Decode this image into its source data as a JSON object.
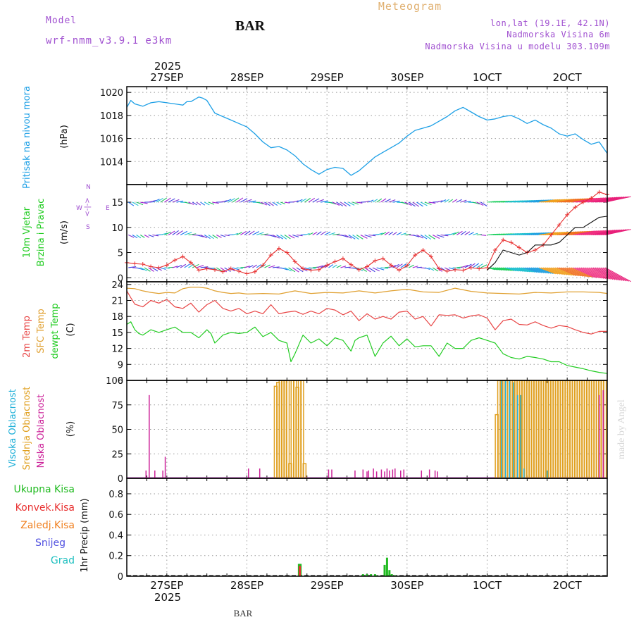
{
  "header": {
    "model_label": "Model",
    "model_name": "wrf-nmm_v3.9.1 e3km",
    "station": "BAR",
    "title": "Meteogram",
    "lonlat": "lon,lat (19.1E, 42.1N)",
    "elevation": "Nadmorska Visina 6m",
    "model_elevation": "Nadmorska Visina u modelu 303.109m",
    "footer_station": "BAR",
    "watermark": "made by Angel"
  },
  "time_axis": {
    "year": "2025",
    "ticks": [
      "27SEP",
      "28SEP",
      "29SEP",
      "30SEP",
      "1OCT",
      "2OCT"
    ],
    "x_start": -0.5,
    "x_end": 5.5
  },
  "panel_labels": {
    "pressure": {
      "name": "Pritisak na nivou mora",
      "unit": "(hPa)"
    },
    "wind": {
      "name1": "10m Vjetar",
      "name2": "Brzina i Pravac",
      "unit": "(m/s)",
      "legend_n": "N",
      "legend_s": "S",
      "legend_w": "W",
      "legend_e": "E",
      "legend_arrow": "<-|->"
    },
    "temp": {
      "t2m": "2m Temp",
      "sfc": "SFC Temp",
      "dewpt": "dewpt Temp",
      "unit": "(C)"
    },
    "cloud": {
      "high": "Visoka Oblacnost",
      "mid": "Srednja Oblacnost",
      "low": "Niska Oblacnost",
      "unit": "(%)"
    },
    "precip": {
      "total": "Ukupna Kisa",
      "conv": "Konvek.Kisa",
      "frozen": "Zaledj.Kisa",
      "snow": "Snijeg",
      "hail": "Grad",
      "unit": "1hr Precip (mm)"
    }
  },
  "colors": {
    "pressure": "#1ea0e6",
    "wind_speed": "#e83030",
    "wind_gust": "#111111",
    "t2m": "#e84545",
    "sfc": "#e0a030",
    "dewpt": "#22cc22",
    "cloud_high": "#20b0d8",
    "cloud_mid": "#e0a020",
    "cloud_low": "#cc2299",
    "precip_total": "#22bb22",
    "precip_conv": "#e83030",
    "precip_frozen": "#f08020",
    "precip_snow": "#5050e0",
    "precip_hail": "#20c0c0",
    "model_label": "#a050d0",
    "title": "#e0b070",
    "site_info": "#a050d0"
  },
  "chart_data": [
    {
      "type": "line",
      "id": "pressure",
      "ylim": [
        1012,
        1020.5
      ],
      "yticks": [
        1014,
        1016,
        1018,
        1020
      ],
      "x": [
        -0.5,
        -0.45,
        -0.4,
        -0.3,
        -0.2,
        -0.1,
        0,
        0.1,
        0.2,
        0.25,
        0.3,
        0.4,
        0.45,
        0.5,
        0.6,
        0.7,
        0.8,
        0.9,
        1.0,
        1.1,
        1.2,
        1.3,
        1.4,
        1.5,
        1.6,
        1.7,
        1.8,
        1.9,
        2.0,
        2.1,
        2.2,
        2.3,
        2.4,
        2.5,
        2.6,
        2.7,
        2.8,
        2.9,
        3.0,
        3.1,
        3.2,
        3.3,
        3.4,
        3.5,
        3.6,
        3.7,
        3.8,
        3.9,
        4.0,
        4.1,
        4.2,
        4.3,
        4.4,
        4.5,
        4.6,
        4.7,
        4.8,
        4.9,
        5.0,
        5.1,
        5.2,
        5.3,
        5.4,
        5.5
      ],
      "values": [
        1018.7,
        1019.3,
        1019.0,
        1018.8,
        1019.1,
        1019.2,
        1019.1,
        1019.0,
        1018.9,
        1019.2,
        1019.2,
        1019.6,
        1019.5,
        1019.3,
        1018.2,
        1017.9,
        1017.6,
        1017.3,
        1017.0,
        1016.4,
        1015.7,
        1015.2,
        1015.3,
        1015.0,
        1014.5,
        1013.8,
        1013.3,
        1012.9,
        1013.3,
        1013.5,
        1013.4,
        1012.8,
        1013.2,
        1013.8,
        1014.4,
        1014.8,
        1015.2,
        1015.6,
        1016.2,
        1016.7,
        1016.9,
        1017.1,
        1017.5,
        1017.9,
        1018.4,
        1018.7,
        1018.3,
        1017.9,
        1017.6,
        1017.7,
        1017.9,
        1018.0,
        1017.7,
        1017.3,
        1017.6,
        1017.2,
        1016.9,
        1016.4,
        1016.2,
        1016.4,
        1015.9,
        1015.5,
        1015.7,
        1014.7
      ]
    },
    {
      "type": "line",
      "id": "wind",
      "ylim": [
        -0.8,
        18.5
      ],
      "yticks": [
        0,
        5,
        10,
        15
      ],
      "series": [
        {
          "name": "speed",
          "x": [
            -0.5,
            -0.4,
            -0.3,
            -0.2,
            -0.1,
            0,
            0.1,
            0.2,
            0.3,
            0.4,
            0.5,
            0.6,
            0.7,
            0.8,
            0.9,
            1.0,
            1.1,
            1.2,
            1.3,
            1.4,
            1.5,
            1.6,
            1.7,
            1.8,
            1.9,
            2.0,
            2.1,
            2.2,
            2.3,
            2.4,
            2.5,
            2.6,
            2.7,
            2.8,
            2.9,
            3.0,
            3.1,
            3.2,
            3.3,
            3.4,
            3.5,
            3.6,
            3.7,
            3.8,
            3.9,
            4.0,
            4.1,
            4.2,
            4.3,
            4.4,
            4.5,
            4.6,
            4.7,
            4.8,
            4.9,
            5.0,
            5.1,
            5.2,
            5.3,
            5.4,
            5.5
          ],
          "values": [
            3,
            2.8,
            2.7,
            2.2,
            2,
            2.5,
            3.5,
            4.2,
            3,
            1.5,
            1.8,
            1.6,
            1.2,
            1.8,
            1.3,
            0.8,
            1.2,
            2.5,
            4.5,
            5.8,
            5,
            3.2,
            1.8,
            1.5,
            1.6,
            2.5,
            3.2,
            3.8,
            2.6,
            1.6,
            2.2,
            3.4,
            3.8,
            2.5,
            1.5,
            2.4,
            4.5,
            5.5,
            4.2,
            1.8,
            1.3,
            1.6,
            1.5,
            2,
            1.8,
            2,
            5.5,
            7.5,
            7,
            6,
            5,
            5.5,
            6.5,
            8.5,
            10.5,
            12.5,
            14,
            15,
            15.8,
            17,
            16.5
          ]
        },
        {
          "name": "gust",
          "x": [
            4.0,
            4.1,
            4.2,
            4.3,
            4.4,
            4.5,
            4.6,
            4.7,
            4.8,
            4.9,
            5.0,
            5.1,
            5.2,
            5.3,
            5.4,
            5.5
          ],
          "values": [
            1.5,
            3,
            5.5,
            5,
            4.5,
            5,
            6.5,
            6.5,
            6.5,
            7,
            8.5,
            10,
            10,
            11,
            12,
            12.2
          ]
        }
      ],
      "arrow_rows": [
        2,
        8.5,
        15
      ]
    },
    {
      "type": "line",
      "id": "temperature",
      "ylim": [
        6,
        24.5
      ],
      "yticks": [
        6,
        9,
        12,
        15,
        18,
        21,
        24
      ],
      "series": [
        {
          "name": "t2m",
          "x": [
            -0.5,
            -0.45,
            -0.4,
            -0.3,
            -0.2,
            -0.1,
            0,
            0.1,
            0.2,
            0.3,
            0.4,
            0.5,
            0.6,
            0.7,
            0.8,
            0.9,
            1.0,
            1.1,
            1.2,
            1.3,
            1.4,
            1.5,
            1.6,
            1.7,
            1.8,
            1.9,
            2.0,
            2.1,
            2.2,
            2.3,
            2.4,
            2.5,
            2.6,
            2.7,
            2.8,
            2.9,
            3.0,
            3.1,
            3.2,
            3.3,
            3.4,
            3.5,
            3.6,
            3.7,
            3.8,
            3.9,
            4.0,
            4.1,
            4.2,
            4.3,
            4.4,
            4.5,
            4.6,
            4.7,
            4.8,
            4.9,
            5.0,
            5.1,
            5.2,
            5.3,
            5.4,
            5.5
          ],
          "values": [
            22.8,
            21.5,
            20.3,
            19.8,
            21,
            20.5,
            21.2,
            19.8,
            19.5,
            20.5,
            18.8,
            20.2,
            21,
            19.5,
            19,
            19.5,
            18.5,
            19,
            18.5,
            20.2,
            18.5,
            18.8,
            19,
            18.4,
            19,
            18.5,
            19.5,
            19.2,
            18.3,
            19,
            17.2,
            18.5,
            17.5,
            18,
            17.5,
            18.8,
            19,
            17.5,
            18,
            16.2,
            18.3,
            18.2,
            18.3,
            17.7,
            18.1,
            18.3,
            17.7,
            15.5,
            17.2,
            17.5,
            16.5,
            16.4,
            17,
            16.3,
            15.8,
            16.3,
            16.1,
            15.5,
            15,
            14.7,
            15.2,
            15.2
          ]
        },
        {
          "name": "sfc",
          "x": [
            -0.5,
            -0.4,
            -0.3,
            -0.2,
            -0.1,
            0,
            0.1,
            0.2,
            0.3,
            0.4,
            0.5,
            0.6,
            0.7,
            0.8,
            0.9,
            1.0,
            1.2,
            1.4,
            1.6,
            1.8,
            2.0,
            2.2,
            2.4,
            2.6,
            2.8,
            3.0,
            3.2,
            3.4,
            3.6,
            3.8,
            4.0,
            4.2,
            4.4,
            4.6,
            4.8,
            5.0,
            5.2,
            5.4,
            5.5
          ],
          "values": [
            23.3,
            23.2,
            22.8,
            22.5,
            22.3,
            22.5,
            22.4,
            23.2,
            23.5,
            23.5,
            23.3,
            22.8,
            22.5,
            22.3,
            22.4,
            22.2,
            22.3,
            22.2,
            22.8,
            22.3,
            22.5,
            22.4,
            22.8,
            22.4,
            22.8,
            23.1,
            22.6,
            22.5,
            23.3,
            22.7,
            22.4,
            22.3,
            22.2,
            22.5,
            22.4,
            22.6,
            22.6,
            22.5,
            22.3
          ]
        },
        {
          "name": "dewpt",
          "x": [
            -0.5,
            -0.45,
            -0.4,
            -0.35,
            -0.3,
            -0.2,
            -0.1,
            0,
            0.1,
            0.2,
            0.3,
            0.4,
            0.5,
            0.55,
            0.6,
            0.7,
            0.8,
            0.9,
            1.0,
            1.1,
            1.2,
            1.3,
            1.4,
            1.5,
            1.55,
            1.6,
            1.7,
            1.8,
            1.9,
            2.0,
            2.1,
            2.2,
            2.3,
            2.35,
            2.4,
            2.5,
            2.6,
            2.7,
            2.8,
            2.9,
            3.0,
            3.1,
            3.2,
            3.3,
            3.4,
            3.5,
            3.6,
            3.7,
            3.8,
            3.9,
            4.0,
            4.1,
            4.2,
            4.3,
            4.4,
            4.5,
            4.6,
            4.7,
            4.8,
            4.9,
            5.0,
            5.1,
            5.2,
            5.3,
            5.4,
            5.5
          ],
          "values": [
            16.5,
            17,
            15.5,
            14.8,
            14.5,
            15.5,
            15,
            15.5,
            16,
            15,
            15,
            14,
            15.5,
            14.8,
            13,
            14.5,
            15,
            14.8,
            15,
            16,
            14.2,
            15,
            13.5,
            13,
            9.5,
            11,
            14.5,
            13,
            13.8,
            12.5,
            14,
            13.5,
            11.5,
            13.5,
            14,
            14.5,
            10.5,
            13,
            14.3,
            12.5,
            13.8,
            12.3,
            12.5,
            12.5,
            10.5,
            13,
            12,
            12,
            13.5,
            14,
            13.5,
            13,
            11,
            10.3,
            10,
            10.5,
            10.3,
            10,
            9.5,
            9.5,
            8.8,
            8.5,
            8.2,
            7.8,
            7.5,
            7.3
          ]
        }
      ]
    },
    {
      "type": "bar",
      "id": "cloud",
      "ylim": [
        0,
        100
      ],
      "yticks": [
        0,
        25,
        50,
        75,
        100
      ],
      "series": [
        {
          "name": "mid",
          "x": [
            1.36,
            1.39,
            1.42,
            1.45,
            1.48,
            1.51,
            1.54,
            1.57,
            1.6,
            1.63,
            1.66,
            1.69,
            1.72,
            4.12,
            4.15,
            4.18,
            4.21,
            4.24,
            4.27,
            4.3,
            4.33,
            4.36,
            4.39,
            4.42,
            4.45,
            4.48,
            4.51,
            4.54,
            4.57,
            4.6,
            4.63,
            4.66,
            4.69,
            4.72,
            4.75,
            4.78,
            4.81,
            4.84,
            4.87,
            4.9,
            4.93,
            4.96,
            4.99,
            5.02,
            5.05,
            5.08,
            5.11,
            5.14,
            5.17,
            5.2,
            5.23,
            5.26,
            5.29,
            5.32,
            5.35,
            5.38,
            5.41,
            5.44,
            5.47
          ],
          "values": [
            94,
            98,
            100,
            100,
            100,
            100,
            15,
            100,
            100,
            93,
            100,
            100,
            15,
            65,
            100,
            100,
            100,
            100,
            100,
            100,
            100,
            100,
            100,
            100,
            100,
            100,
            100,
            100,
            100,
            100,
            100,
            100,
            100,
            100,
            100,
            100,
            100,
            100,
            100,
            100,
            100,
            100,
            100,
            100,
            100,
            100,
            100,
            100,
            100,
            100,
            100,
            100,
            100,
            100,
            100,
            100,
            100,
            100,
            100
          ]
        },
        {
          "name": "low",
          "x": [
            -0.26,
            -0.22,
            -0.15,
            -0.05,
            -0.02,
            1.02,
            1.16,
            2.02,
            2.06,
            2.35,
            2.45,
            2.5,
            2.52,
            2.58,
            2.62,
            2.68,
            2.72,
            2.75,
            2.78,
            2.82,
            2.85,
            2.92,
            2.96,
            3.18,
            3.28,
            3.35,
            3.38,
            5.4,
            5.45
          ],
          "values": [
            8,
            85,
            8,
            8,
            22,
            10,
            10,
            9,
            9,
            8,
            9,
            7,
            8,
            10,
            7,
            9,
            7,
            10,
            8,
            9,
            10,
            8,
            9,
            8,
            9,
            8,
            7,
            85,
            90
          ]
        },
        {
          "name": "high",
          "x": [
            4.18,
            4.23,
            4.28,
            4.33,
            4.38,
            4.42,
            4.46,
            4.75
          ],
          "values": [
            100,
            100,
            100,
            98,
            85,
            85,
            10,
            8
          ]
        }
      ]
    },
    {
      "type": "bar",
      "id": "precip",
      "ylim": [
        0,
        0.95
      ],
      "yticks": [
        0,
        0.2,
        0.4,
        0.6,
        0.8
      ],
      "series": [
        {
          "name": "total",
          "x": [
            1.65,
            1.67,
            2.45,
            2.5,
            2.55,
            2.6,
            2.62,
            2.72,
            2.75,
            2.78,
            2.81,
            2.85
          ],
          "values": [
            0.12,
            0.12,
            0.02,
            0.02,
            0.02,
            0.02,
            0.01,
            0.11,
            0.18,
            0.06,
            0.02,
            0.01
          ]
        },
        {
          "name": "conv",
          "x": [
            1.66
          ],
          "values": [
            0.1
          ]
        }
      ]
    }
  ]
}
